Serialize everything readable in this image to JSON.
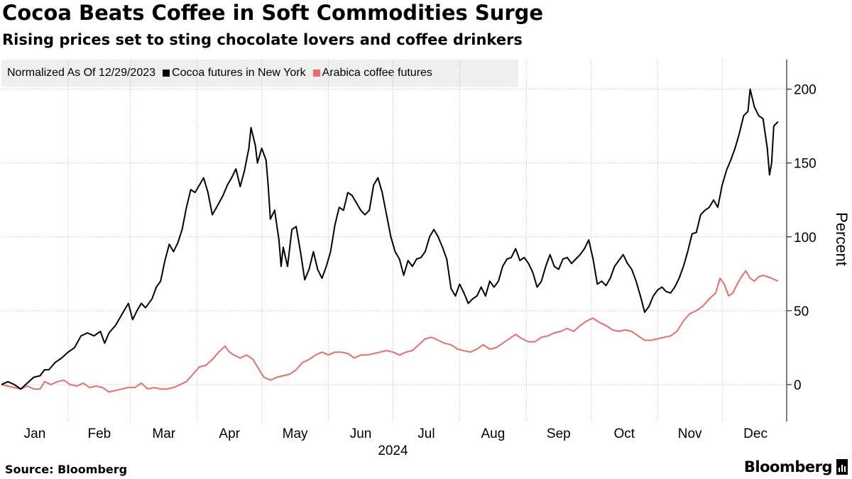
{
  "chart_data": {
    "type": "line",
    "title": "Cocoa Beats Coffee in Soft Commodities Surge",
    "subtitle": "Rising prices set to sting chocolate lovers and coffee drinkers",
    "ylabel": "Percent",
    "xlabel": "2024",
    "legend_note": "Normalized As Of 12/29/2023",
    "ylim": [
      -25,
      220
    ],
    "yticks": [
      0,
      50,
      100,
      150,
      200
    ],
    "months": [
      "Jan",
      "Feb",
      "Mar",
      "Apr",
      "May",
      "Jun",
      "Jul",
      "Aug",
      "Sep",
      "Oct",
      "Nov",
      "Dec"
    ],
    "source": "Source: Bloomberg",
    "brand": "Bloomberg",
    "series": [
      {
        "name": "Cocoa futures in New York",
        "color": "#000000",
        "points": [
          [
            0,
            0
          ],
          [
            3,
            2
          ],
          [
            6,
            0
          ],
          [
            9,
            -3
          ],
          [
            12,
            1
          ],
          [
            15,
            5
          ],
          [
            18,
            6
          ],
          [
            20,
            10
          ],
          [
            22,
            10
          ],
          [
            25,
            15
          ],
          [
            28,
            18
          ],
          [
            31,
            22
          ],
          [
            34,
            25
          ],
          [
            37,
            33
          ],
          [
            40,
            35
          ],
          [
            43,
            33
          ],
          [
            46,
            36
          ],
          [
            48,
            28
          ],
          [
            50,
            35
          ],
          [
            53,
            40
          ],
          [
            55,
            45
          ],
          [
            57,
            50
          ],
          [
            59,
            55
          ],
          [
            61,
            44
          ],
          [
            63,
            50
          ],
          [
            65,
            55
          ],
          [
            67,
            52
          ],
          [
            70,
            58
          ],
          [
            72,
            66
          ],
          [
            74,
            70
          ],
          [
            76,
            84
          ],
          [
            78,
            95
          ],
          [
            80,
            90
          ],
          [
            82,
            96
          ],
          [
            84,
            105
          ],
          [
            86,
            120
          ],
          [
            88,
            132
          ],
          [
            90,
            130
          ],
          [
            92,
            135
          ],
          [
            94,
            140
          ],
          [
            96,
            130
          ],
          [
            98,
            115
          ],
          [
            100,
            120
          ],
          [
            103,
            128
          ],
          [
            105,
            135
          ],
          [
            107,
            140
          ],
          [
            109,
            146
          ],
          [
            111,
            134
          ],
          [
            113,
            145
          ],
          [
            115,
            160
          ],
          [
            116,
            174
          ],
          [
            118,
            162
          ],
          [
            119,
            150
          ],
          [
            121,
            160
          ],
          [
            123,
            152
          ],
          [
            124,
            135
          ],
          [
            125,
            112
          ],
          [
            127,
            118
          ],
          [
            129,
            98
          ],
          [
            130,
            80
          ],
          [
            131,
            93
          ],
          [
            133,
            80
          ],
          [
            135,
            105
          ],
          [
            137,
            107
          ],
          [
            139,
            90
          ],
          [
            141,
            71
          ],
          [
            143,
            78
          ],
          [
            145,
            90
          ],
          [
            147,
            78
          ],
          [
            149,
            72
          ],
          [
            151,
            80
          ],
          [
            153,
            90
          ],
          [
            155,
            108
          ],
          [
            157,
            120
          ],
          [
            159,
            118
          ],
          [
            161,
            130
          ],
          [
            163,
            128
          ],
          [
            165,
            123
          ],
          [
            167,
            118
          ],
          [
            169,
            115
          ],
          [
            171,
            118
          ],
          [
            173,
            135
          ],
          [
            175,
            140
          ],
          [
            177,
            130
          ],
          [
            179,
            115
          ],
          [
            181,
            100
          ],
          [
            183,
            90
          ],
          [
            185,
            85
          ],
          [
            187,
            74
          ],
          [
            189,
            84
          ],
          [
            191,
            80
          ],
          [
            193,
            85
          ],
          [
            195,
            86
          ],
          [
            197,
            90
          ],
          [
            199,
            100
          ],
          [
            201,
            105
          ],
          [
            203,
            100
          ],
          [
            205,
            93
          ],
          [
            207,
            85
          ],
          [
            209,
            65
          ],
          [
            211,
            60
          ],
          [
            213,
            68
          ],
          [
            215,
            62
          ],
          [
            217,
            55
          ],
          [
            219,
            58
          ],
          [
            221,
            60
          ],
          [
            223,
            66
          ],
          [
            225,
            60
          ],
          [
            227,
            70
          ],
          [
            229,
            66
          ],
          [
            231,
            70
          ],
          [
            233,
            80
          ],
          [
            235,
            85
          ],
          [
            237,
            86
          ],
          [
            239,
            92
          ],
          [
            241,
            84
          ],
          [
            243,
            86
          ],
          [
            245,
            82
          ],
          [
            247,
            76
          ],
          [
            249,
            66
          ],
          [
            251,
            70
          ],
          [
            253,
            80
          ],
          [
            255,
            88
          ],
          [
            257,
            80
          ],
          [
            259,
            78
          ],
          [
            261,
            85
          ],
          [
            263,
            86
          ],
          [
            265,
            82
          ],
          [
            267,
            85
          ],
          [
            269,
            88
          ],
          [
            271,
            92
          ],
          [
            273,
            98
          ],
          [
            275,
            85
          ],
          [
            277,
            68
          ],
          [
            279,
            70
          ],
          [
            281,
            67
          ],
          [
            283,
            72
          ],
          [
            285,
            80
          ],
          [
            287,
            84
          ],
          [
            289,
            88
          ],
          [
            291,
            82
          ],
          [
            293,
            78
          ],
          [
            295,
            70
          ],
          [
            297,
            60
          ],
          [
            299,
            49
          ],
          [
            301,
            53
          ],
          [
            303,
            60
          ],
          [
            305,
            64
          ],
          [
            307,
            66
          ],
          [
            309,
            63
          ],
          [
            311,
            62
          ],
          [
            313,
            66
          ],
          [
            315,
            72
          ],
          [
            317,
            80
          ],
          [
            319,
            90
          ],
          [
            321,
            102
          ],
          [
            323,
            103
          ],
          [
            325,
            115
          ],
          [
            327,
            118
          ],
          [
            329,
            120
          ],
          [
            331,
            125
          ],
          [
            333,
            120
          ],
          [
            335,
            135
          ],
          [
            337,
            145
          ],
          [
            339,
            152
          ],
          [
            341,
            160
          ],
          [
            343,
            170
          ],
          [
            345,
            182
          ],
          [
            347,
            185
          ],
          [
            348,
            200
          ],
          [
            350,
            188
          ],
          [
            352,
            182
          ],
          [
            354,
            180
          ],
          [
            356,
            160
          ],
          [
            357,
            142
          ],
          [
            358,
            150
          ],
          [
            359,
            175
          ],
          [
            361,
            178
          ]
        ]
      },
      {
        "name": "Arabica coffee futures",
        "color": "#ec6c6c",
        "points": [
          [
            0,
            0
          ],
          [
            3,
            -1
          ],
          [
            6,
            -2
          ],
          [
            9,
            -3
          ],
          [
            12,
            -1
          ],
          [
            15,
            -3
          ],
          [
            18,
            -3
          ],
          [
            20,
            2
          ],
          [
            23,
            0
          ],
          [
            26,
            2
          ],
          [
            29,
            3
          ],
          [
            32,
            0
          ],
          [
            35,
            -1
          ],
          [
            38,
            1
          ],
          [
            41,
            -2
          ],
          [
            44,
            -1
          ],
          [
            47,
            -2
          ],
          [
            50,
            -5
          ],
          [
            53,
            -4
          ],
          [
            56,
            -3
          ],
          [
            59,
            -2
          ],
          [
            62,
            -2
          ],
          [
            65,
            1
          ],
          [
            68,
            -3
          ],
          [
            71,
            -2
          ],
          [
            74,
            -3
          ],
          [
            77,
            -3
          ],
          [
            80,
            -2
          ],
          [
            83,
            0
          ],
          [
            86,
            2
          ],
          [
            89,
            7
          ],
          [
            92,
            12
          ],
          [
            95,
            13
          ],
          [
            98,
            17
          ],
          [
            101,
            22
          ],
          [
            104,
            26
          ],
          [
            106,
            22
          ],
          [
            108,
            20
          ],
          [
            111,
            18
          ],
          [
            114,
            20
          ],
          [
            117,
            17
          ],
          [
            119,
            12
          ],
          [
            122,
            5
          ],
          [
            125,
            3
          ],
          [
            128,
            5
          ],
          [
            131,
            6
          ],
          [
            134,
            7
          ],
          [
            137,
            10
          ],
          [
            140,
            15
          ],
          [
            143,
            17
          ],
          [
            146,
            20
          ],
          [
            149,
            22
          ],
          [
            152,
            20
          ],
          [
            155,
            22
          ],
          [
            158,
            22
          ],
          [
            161,
            21
          ],
          [
            164,
            18
          ],
          [
            167,
            20
          ],
          [
            170,
            20
          ],
          [
            173,
            21
          ],
          [
            176,
            22
          ],
          [
            179,
            23
          ],
          [
            182,
            22
          ],
          [
            185,
            20
          ],
          [
            188,
            22
          ],
          [
            191,
            23
          ],
          [
            194,
            27
          ],
          [
            197,
            31
          ],
          [
            200,
            32
          ],
          [
            203,
            30
          ],
          [
            206,
            28
          ],
          [
            209,
            27
          ],
          [
            212,
            24
          ],
          [
            215,
            23
          ],
          [
            218,
            22
          ],
          [
            221,
            24
          ],
          [
            224,
            27
          ],
          [
            227,
            24
          ],
          [
            230,
            25
          ],
          [
            233,
            28
          ],
          [
            236,
            31
          ],
          [
            239,
            34
          ],
          [
            242,
            31
          ],
          [
            245,
            29
          ],
          [
            248,
            29
          ],
          [
            251,
            32
          ],
          [
            254,
            33
          ],
          [
            257,
            35
          ],
          [
            260,
            36
          ],
          [
            263,
            38
          ],
          [
            266,
            36
          ],
          [
            269,
            40
          ],
          [
            272,
            43
          ],
          [
            275,
            45
          ],
          [
            278,
            42
          ],
          [
            281,
            40
          ],
          [
            284,
            37
          ],
          [
            287,
            36
          ],
          [
            290,
            37
          ],
          [
            293,
            36
          ],
          [
            296,
            33
          ],
          [
            299,
            30
          ],
          [
            302,
            30
          ],
          [
            305,
            31
          ],
          [
            308,
            32
          ],
          [
            311,
            33
          ],
          [
            314,
            36
          ],
          [
            317,
            43
          ],
          [
            320,
            48
          ],
          [
            323,
            50
          ],
          [
            326,
            53
          ],
          [
            329,
            58
          ],
          [
            332,
            62
          ],
          [
            334,
            72
          ],
          [
            336,
            68
          ],
          [
            338,
            60
          ],
          [
            340,
            62
          ],
          [
            342,
            68
          ],
          [
            344,
            73
          ],
          [
            346,
            77
          ],
          [
            348,
            72
          ],
          [
            350,
            70
          ],
          [
            352,
            73
          ],
          [
            354,
            74
          ],
          [
            356,
            73
          ],
          [
            358,
            72
          ],
          [
            361,
            70
          ]
        ]
      }
    ]
  }
}
